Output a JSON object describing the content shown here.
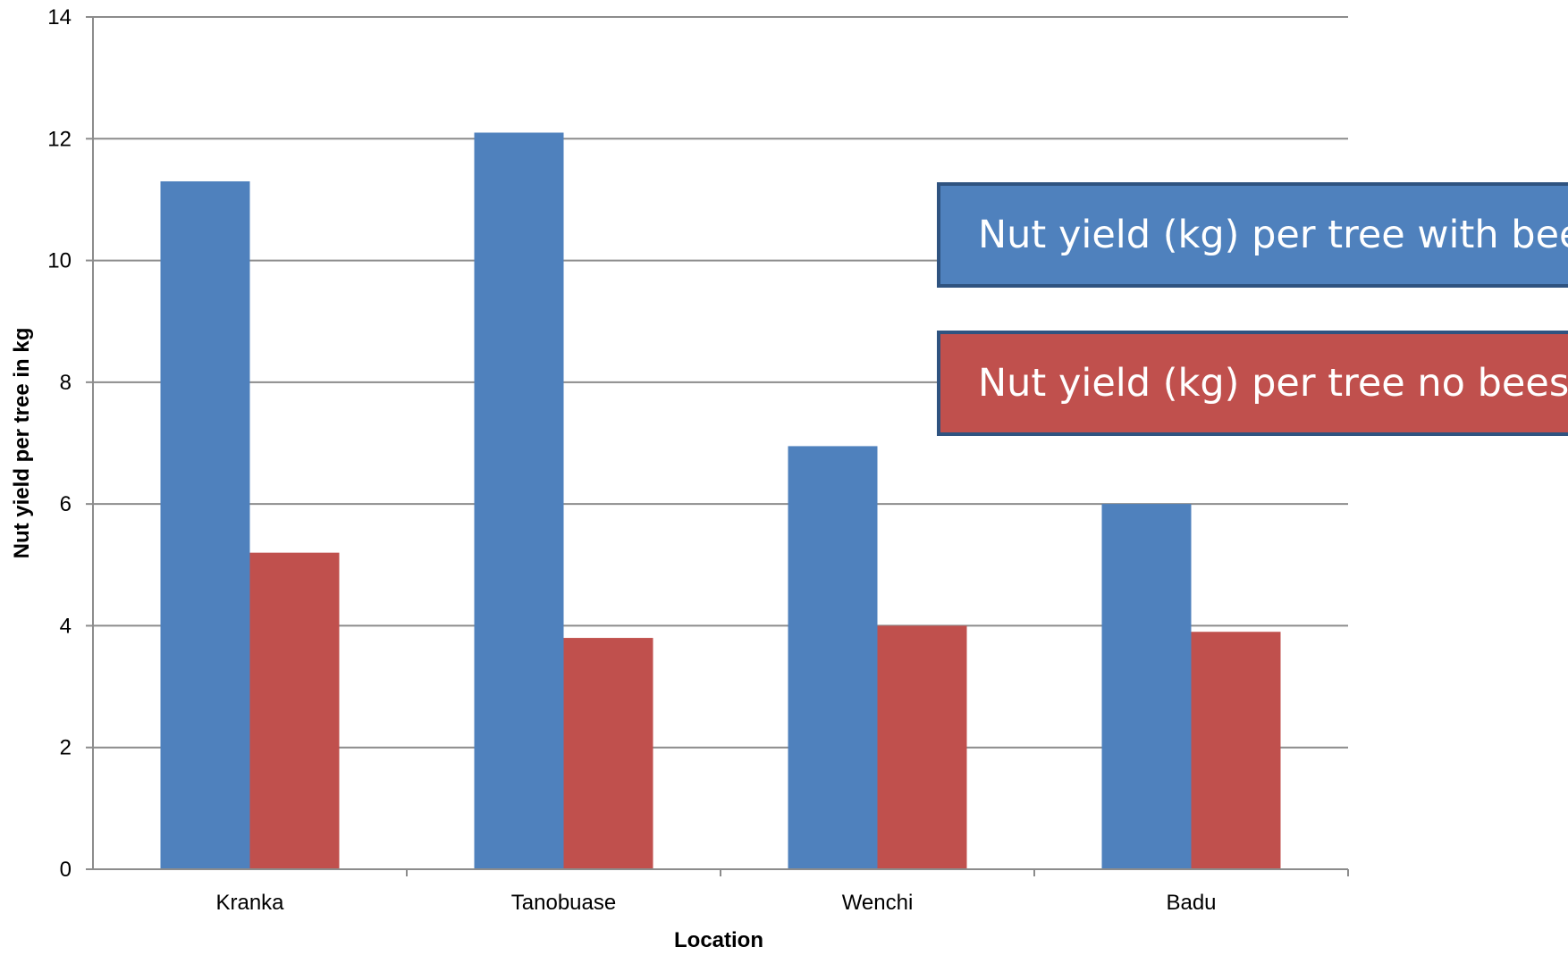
{
  "chart_data": {
    "type": "bar",
    "title": "",
    "xlabel": "Location",
    "ylabel": "Nut yield per tree in kg",
    "categories": [
      "Kranka",
      "Tanobuase",
      "Wenchi",
      "Badu"
    ],
    "series": [
      {
        "name": "Nut yield (kg) per tree with bees",
        "color": "#4f81bd",
        "values": [
          11.3,
          12.1,
          6.95,
          6.0
        ]
      },
      {
        "name": "Nut yield (kg) per tree no bees",
        "color": "#c0504d",
        "values": [
          5.2,
          3.8,
          4.0,
          3.9
        ]
      }
    ],
    "ylim": [
      0,
      14
    ],
    "yticks": [
      0,
      2,
      4,
      6,
      8,
      10,
      12,
      14
    ],
    "grid": true,
    "legend_placement": "right"
  }
}
